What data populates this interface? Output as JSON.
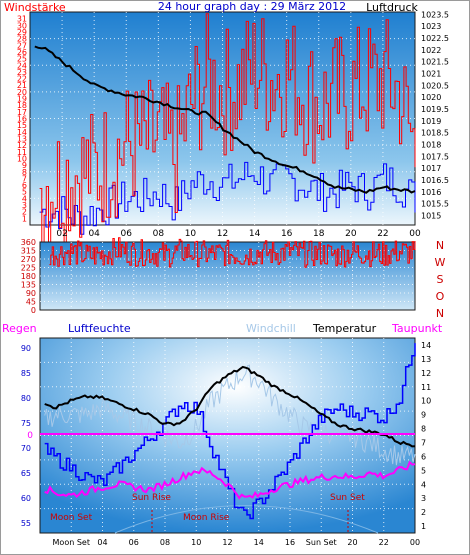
{
  "chart_data": [
    {
      "type": "line",
      "title": "24 hour graph day : 29 März 2012",
      "left_label": "Windstärke",
      "right_label": "Luftdruck",
      "x_tick_labels": [
        "02",
        "04",
        "06",
        "08",
        "10",
        "12",
        "14",
        "16",
        "18",
        "20",
        "22",
        "00"
      ],
      "y_left_ticks": [
        "1",
        "2",
        "3",
        "4",
        "5",
        "6",
        "7",
        "8",
        "9",
        "10",
        "11",
        "12",
        "13",
        "14",
        "15",
        "16",
        "17",
        "18",
        "19",
        "20",
        "21",
        "22",
        "23",
        "24",
        "25",
        "26",
        "27",
        "28",
        "29",
        "30",
        "31"
      ],
      "y_right_ticks": [
        "1015",
        "1015.5",
        "1016",
        "1016.5",
        "1017",
        "1017.5",
        "1018",
        "1018.5",
        "1019",
        "1019.5",
        "1020",
        "1020.5",
        "1021",
        "1021.5",
        "1022",
        "1022.5",
        "1023",
        "1023.5"
      ],
      "ylim_left": [
        0,
        32
      ],
      "ylim_right": [
        1014.6,
        1023.6
      ],
      "series": [
        {
          "name": "Windstärke",
          "color": "#ff0000",
          "x": [
            0,
            1,
            2,
            3,
            4,
            5,
            6,
            7,
            8,
            9,
            10,
            11,
            12,
            13,
            14,
            15,
            16,
            17,
            18,
            19,
            20,
            21,
            22,
            23,
            24
          ],
          "values": [
            5,
            6,
            7,
            8,
            8,
            10,
            12,
            12,
            13,
            10,
            18,
            22,
            20,
            21,
            24,
            22,
            23,
            20,
            18,
            19,
            20,
            21,
            22,
            20,
            11
          ]
        },
        {
          "name": "Windböen",
          "color": "#0000ff",
          "x": [
            0,
            1,
            2,
            3,
            4,
            5,
            6,
            7,
            8,
            9,
            10,
            11,
            12,
            13,
            14,
            15,
            16,
            17,
            18,
            19,
            20,
            21,
            22,
            23,
            24
          ],
          "values": [
            2,
            2,
            2,
            1,
            2,
            3,
            4,
            4,
            5,
            3,
            6,
            7,
            6,
            7,
            8,
            6,
            7,
            6,
            5,
            5,
            6,
            5,
            7,
            6,
            4
          ]
        },
        {
          "name": "Luftdruck",
          "color": "#000000",
          "x": [
            0,
            1,
            2,
            3,
            4,
            5,
            6,
            7,
            8,
            9,
            10,
            11,
            12,
            13,
            14,
            15,
            16,
            17,
            18,
            19,
            20,
            21,
            22,
            23,
            24
          ],
          "values": [
            1022.3,
            1022.0,
            1021.5,
            1021.0,
            1020.5,
            1020.3,
            1020.1,
            1020.0,
            1019.8,
            1019.6,
            1019.4,
            1019.3,
            1018.7,
            1018.2,
            1017.7,
            1017.4,
            1017.1,
            1016.9,
            1016.6,
            1016.2,
            1016.1,
            1016.0,
            1016.2,
            1016.1,
            1016.0
          ]
        }
      ]
    },
    {
      "type": "line",
      "title": "",
      "x_tick_labels": [
        "02",
        "04",
        "06",
        "08",
        "10",
        "12",
        "14",
        "16",
        "18",
        "20",
        "22",
        "00"
      ],
      "y_left_ticks": [
        "0",
        "45",
        "90",
        "135",
        "180",
        "225",
        "270",
        "315",
        "360"
      ],
      "y_right_ticks": [
        "N",
        "W",
        "S",
        "O",
        "N"
      ],
      "ylim": [
        0,
        360
      ],
      "series": [
        {
          "name": "Windrichtung",
          "color": "#ff0000",
          "x": [
            0,
            1,
            2,
            3,
            4,
            5,
            6,
            7,
            8,
            9,
            10,
            11,
            12,
            13,
            14,
            15,
            16,
            17,
            18,
            19,
            20,
            21,
            22,
            23,
            24
          ],
          "values": [
            290,
            300,
            310,
            285,
            295,
            320,
            300,
            305,
            290,
            310,
            300,
            295,
            300,
            290,
            305,
            300,
            310,
            295,
            300,
            290,
            305,
            300,
            295,
            310,
            300
          ]
        }
      ]
    },
    {
      "type": "line",
      "title": "",
      "legend": [
        "Regen",
        "Luftfeuchte",
        "Windchill",
        "Temperatur",
        "Taupunkt"
      ],
      "x_tick_labels": [
        "02",
        "04",
        "06",
        "08",
        "10",
        "12",
        "14",
        "16",
        "18",
        "20",
        "22",
        "00"
      ],
      "bottom_labels": [
        "Moon Set",
        "Sun Set"
      ],
      "annotations": [
        "Sun Rise",
        "Sun Set",
        "Moon Set",
        "Moon Rise"
      ],
      "rain_label": "0",
      "y_left_ticks": [
        "55",
        "60",
        "65",
        "70",
        "75",
        "80",
        "85",
        "90"
      ],
      "y_right_ticks": [
        "1",
        "2",
        "3",
        "4",
        "5",
        "6",
        "7",
        "8",
        "9",
        "10",
        "11",
        "12",
        "13",
        "14"
      ],
      "ylim_left": [
        53,
        92
      ],
      "ylim_right": [
        0.5,
        14.5
      ],
      "series": [
        {
          "name": "Luftfeuchte",
          "color": "#0000ff",
          "x": [
            0,
            1,
            2,
            3,
            4,
            5,
            6,
            7,
            8,
            9,
            10,
            11,
            12,
            13,
            14,
            15,
            16,
            17,
            18,
            19,
            20,
            21,
            22,
            23,
            24
          ],
          "values": [
            70,
            68,
            66,
            64,
            63,
            66,
            69,
            72,
            75,
            79,
            78,
            70,
            62,
            56,
            59,
            63,
            67,
            72,
            76,
            78,
            77,
            77,
            76,
            80,
            92
          ]
        },
        {
          "name": "Windchill",
          "color": "#a6c8e8",
          "x": [
            0,
            1,
            2,
            3,
            4,
            5,
            6,
            7,
            8,
            9,
            10,
            11,
            12,
            13,
            14,
            15,
            16,
            17,
            18,
            19,
            20,
            21,
            22,
            23,
            24
          ],
          "values": [
            8.5,
            9,
            9,
            9,
            9.5,
            9,
            8.5,
            8,
            7.5,
            7,
            8,
            10,
            11,
            12,
            11.5,
            10,
            9,
            8,
            8,
            7.5,
            7.5,
            7,
            6.5,
            6,
            6
          ]
        },
        {
          "name": "Temperatur",
          "color": "#000000",
          "x": [
            0,
            1,
            2,
            3,
            4,
            5,
            6,
            7,
            8,
            9,
            10,
            11,
            12,
            13,
            14,
            15,
            16,
            17,
            18,
            19,
            20,
            21,
            22,
            23,
            24
          ],
          "values": [
            10,
            9.5,
            10,
            10.3,
            10.2,
            9.8,
            9.4,
            9,
            8.3,
            8.4,
            9.4,
            11,
            11.8,
            12.4,
            11.8,
            11,
            10.5,
            9.8,
            9,
            8.3,
            8,
            7.8,
            7.6,
            7,
            6.8
          ]
        },
        {
          "name": "Taupunkt",
          "color": "#ff00ff",
          "x": [
            0,
            1,
            2,
            3,
            4,
            5,
            6,
            7,
            8,
            9,
            10,
            11,
            12,
            13,
            14,
            15,
            16,
            17,
            18,
            19,
            20,
            21,
            22,
            23,
            24
          ],
          "values": [
            3.8,
            3.4,
            3.2,
            3.5,
            3.8,
            4,
            3.8,
            3.6,
            4,
            4.5,
            5,
            4.8,
            4,
            3,
            3.2,
            3.7,
            4,
            4.3,
            4.5,
            4.6,
            4.5,
            4.8,
            4.6,
            5,
            5.5
          ]
        }
      ]
    }
  ]
}
